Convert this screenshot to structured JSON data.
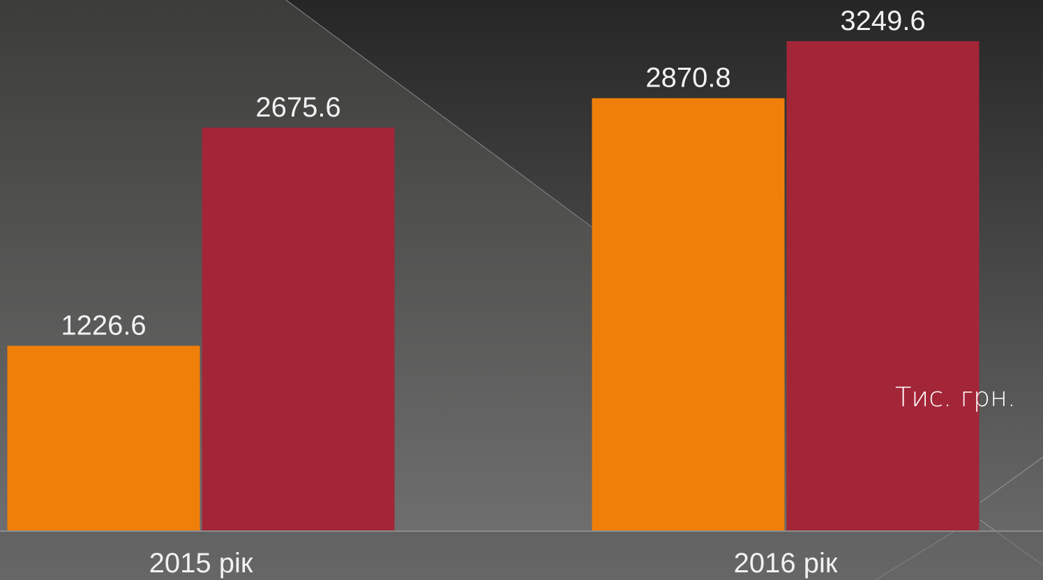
{
  "chart_data": {
    "type": "bar",
    "categories": [
      "2015 рік",
      "2016 рік"
    ],
    "series": [
      {
        "color": "#f07f09",
        "values": [
          1226.6,
          2870.8
        ]
      },
      {
        "color": "#a32638",
        "values": [
          2675.6,
          3249.6
        ]
      }
    ],
    "annotation": "Тис. грн."
  }
}
